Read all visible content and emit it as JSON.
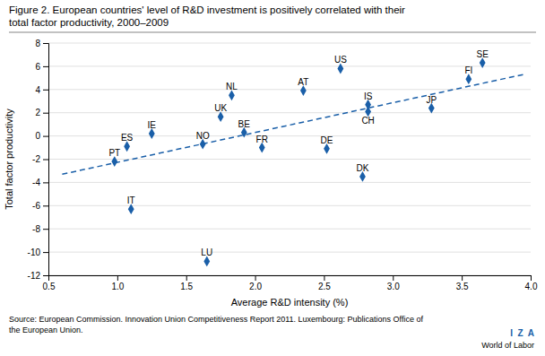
{
  "chart_data": {
    "type": "scatter",
    "title": [
      "Figure 2. European countries' level of R&D investment is positively correlated with their",
      "total factor productivity, 2000–2009"
    ],
    "x_label": "Average R&D intensity (%)",
    "y_label": "Total factor productivity",
    "xlim": [
      0.5,
      4.0
    ],
    "ylim": [
      -12,
      8
    ],
    "xticks": [
      0.5,
      {
        "value": 1.0,
        "label": "1.0"
      },
      1.5,
      {
        "value": 2.0,
        "label": "2.0"
      },
      2.5,
      {
        "value": 3.0,
        "label": "3.0"
      },
      3.5,
      {
        "value": 4.0,
        "label": "4.0"
      }
    ],
    "yticks": [
      -12,
      -10,
      -8,
      -6,
      -4,
      -2,
      0,
      2,
      4,
      6,
      8
    ],
    "grid": true,
    "labels": [
      "PT",
      "ES",
      "IT",
      "IE",
      "NO",
      "UK",
      "NL",
      "BE",
      "LU",
      "FR",
      "AT",
      "DE",
      "US",
      "IS",
      "CH",
      "DK",
      "JP",
      "FI",
      "SE"
    ],
    "x": [
      0.98,
      1.07,
      1.1,
      1.25,
      1.62,
      1.75,
      1.83,
      1.92,
      1.65,
      2.05,
      2.35,
      2.52,
      2.62,
      2.82,
      2.82,
      2.78,
      3.28,
      3.55,
      3.65
    ],
    "values": [
      -2.2,
      -0.9,
      -6.3,
      0.2,
      -0.7,
      1.65,
      3.5,
      0.3,
      -10.8,
      -1.0,
      3.9,
      -1.1,
      5.8,
      2.7,
      2.1,
      -3.5,
      2.4,
      4.9,
      6.3
    ],
    "color": "#1a5fa8",
    "marker": "diamond",
    "trendline": {
      "x": [
        0.6,
        3.95
      ],
      "values": [
        -3.3,
        5.3
      ],
      "color": "#1a5fa8",
      "line_style": "dashed"
    },
    "source": [
      "Source: European Commission. Innovation Union Competitiveness Report 2011. Luxembourg: Publications Office of",
      "the European Union."
    ],
    "annotations": [
      {
        "text": "I  Z  A",
        "color": "#1a5fa8"
      },
      {
        "text": "World of Labor"
      }
    ]
  }
}
